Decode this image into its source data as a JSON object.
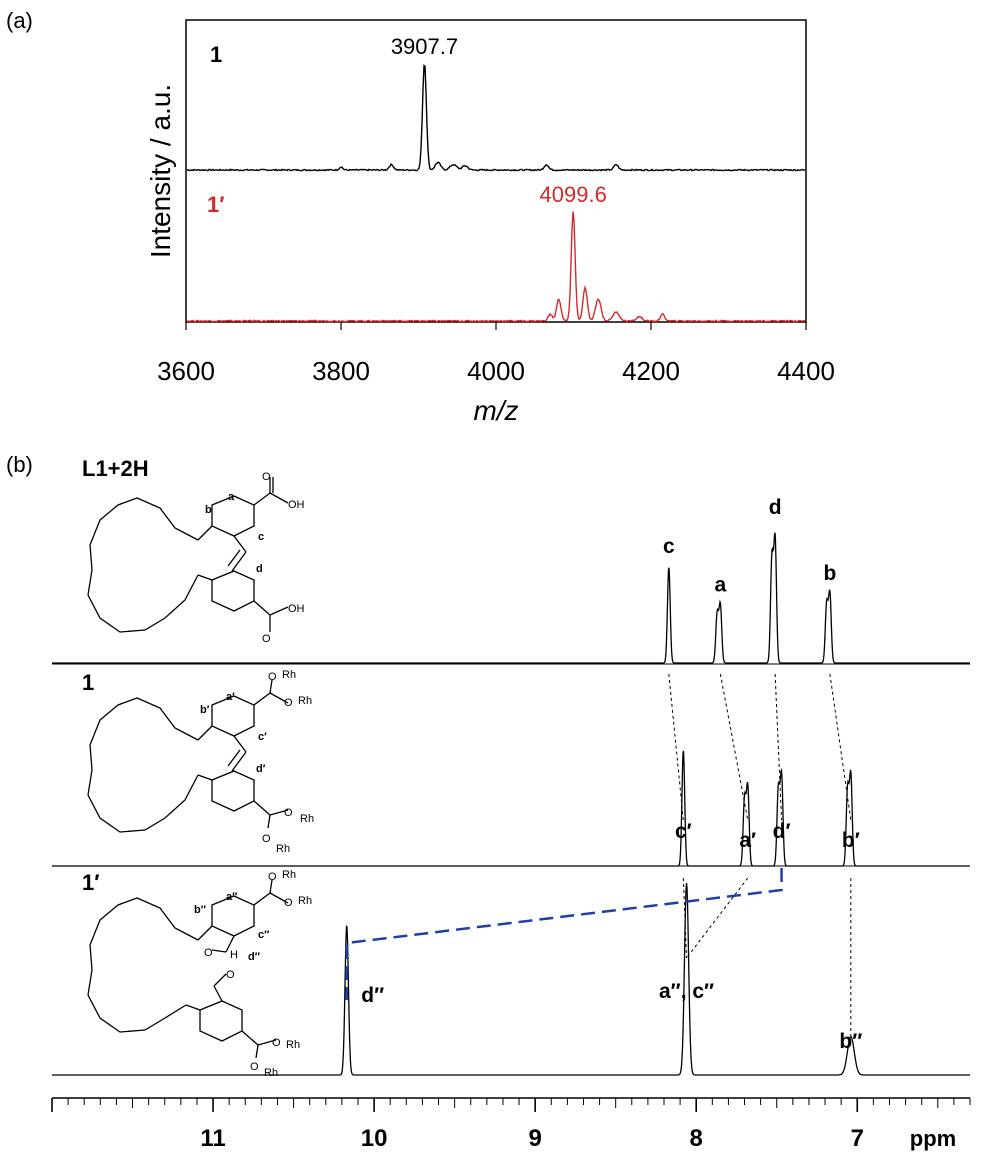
{
  "colors": {
    "black": "#000000",
    "red": "#d42a2a",
    "blue": "#1f3fa8"
  },
  "chart_data": [
    {
      "panel_label": "(a)",
      "type": "line",
      "xlabel": "m/z",
      "ylabel": "Intensity / a.u.",
      "xlim": [
        3600,
        4400
      ],
      "x_ticks": [
        "3600",
        "3800",
        "4000",
        "4200",
        "4400"
      ],
      "grid": false,
      "series": [
        {
          "name": "1",
          "color": "#000000",
          "peak_label": "3907.7",
          "peaks": [
            {
              "x": 3907.7,
              "h": 1.0,
              "w": 3.5
            },
            {
              "x": 3925,
              "h": 0.07,
              "w": 5
            },
            {
              "x": 3945,
              "h": 0.05,
              "w": 6
            },
            {
              "x": 3960,
              "h": 0.04,
              "w": 5
            },
            {
              "x": 3865,
              "h": 0.05,
              "w": 4
            },
            {
              "x": 3800,
              "h": 0.03,
              "w": 3
            },
            {
              "x": 4065,
              "h": 0.05,
              "w": 4
            },
            {
              "x": 4155,
              "h": 0.05,
              "w": 4
            }
          ]
        },
        {
          "name": "1′",
          "color": "#d42a2a",
          "peak_label": "4099.6",
          "peaks": [
            {
              "x": 4099.6,
              "h": 1.0,
              "w": 3.5
            },
            {
              "x": 4081,
              "h": 0.2,
              "w": 4
            },
            {
              "x": 4115,
              "h": 0.3,
              "w": 4
            },
            {
              "x": 4132,
              "h": 0.2,
              "w": 5
            },
            {
              "x": 4155,
              "h": 0.08,
              "w": 6
            },
            {
              "x": 4070,
              "h": 0.06,
              "w": 4
            },
            {
              "x": 4215,
              "h": 0.06,
              "w": 4
            },
            {
              "x": 4185,
              "h": 0.04,
              "w": 5
            }
          ]
        }
      ]
    },
    {
      "panel_label": "(b)",
      "type": "line",
      "xlabel": "ppm",
      "xlim": [
        12,
        6.3
      ],
      "x_ticks": [
        "11",
        "10",
        "9",
        "8",
        "7"
      ],
      "grid": false,
      "series": [
        {
          "name": "L1+2H",
          "peaks": [
            {
              "ppm": 8.17,
              "label": "c",
              "h": 1.0
            },
            {
              "ppm": 7.85,
              "label": "a",
              "h": 0.6
            },
            {
              "ppm": 7.51,
              "label": "d",
              "h": 1.28
            },
            {
              "ppm": 7.17,
              "label": "b",
              "h": 0.72
            }
          ]
        },
        {
          "name": "1",
          "peaks": [
            {
              "ppm": 8.08,
              "label": "c′",
              "h": 1.0
            },
            {
              "ppm": 7.68,
              "label": "a′",
              "h": 0.68
            },
            {
              "ppm": 7.47,
              "label": "d′",
              "h": 0.78
            },
            {
              "ppm": 7.04,
              "label": "b′",
              "h": 0.78
            }
          ]
        },
        {
          "name": "1′",
          "peaks": [
            {
              "ppm": 10.17,
              "label": "d″",
              "h": 0.78
            },
            {
              "ppm": 8.06,
              "label": "a″, c″",
              "h": 1.0
            },
            {
              "ppm": 7.04,
              "label": "b″",
              "h": 0.2
            }
          ]
        }
      ]
    }
  ],
  "structures": {
    "carboxyl_label": "OH",
    "rh_label": "Rh",
    "o_label": "O",
    "h_label": "H",
    "ligand_labels": [
      "a",
      "b",
      "c",
      "d"
    ],
    "complex1_labels": [
      "a′",
      "b′",
      "c′",
      "d′"
    ],
    "complex2_labels": [
      "a″",
      "b″",
      "c″",
      "d″"
    ]
  }
}
